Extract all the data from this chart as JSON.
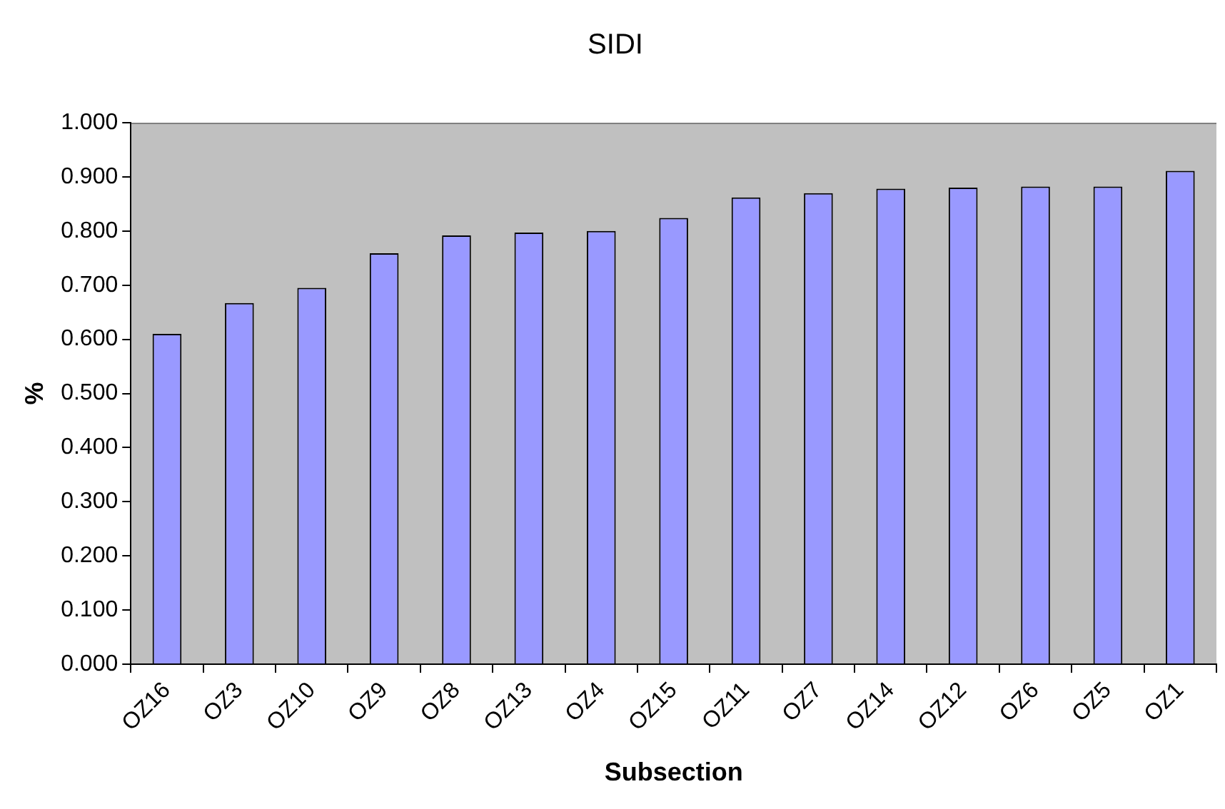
{
  "chart_data": {
    "type": "bar",
    "title": "SIDI",
    "xlabel": "Subsection",
    "ylabel": "%",
    "categories": [
      "OZ16",
      "OZ3",
      "OZ10",
      "OZ9",
      "OZ8",
      "OZ13",
      "OZ4",
      "OZ15",
      "OZ11",
      "OZ7",
      "OZ14",
      "OZ12",
      "OZ6",
      "OZ5",
      "OZ1"
    ],
    "values": [
      0.61,
      0.667,
      0.695,
      0.759,
      0.792,
      0.797,
      0.8,
      0.824,
      0.862,
      0.87,
      0.878,
      0.88,
      0.882,
      0.882,
      0.911
    ],
    "color": "#9999ff",
    "ylim": [
      0,
      1
    ],
    "yticks": [
      {
        "value": 0,
        "label": "0.000"
      },
      {
        "value": 0.1,
        "label": "0.100"
      },
      {
        "value": 0.2,
        "label": "0.200"
      },
      {
        "value": 0.3,
        "label": "0.300"
      },
      {
        "value": 0.4,
        "label": "0.400"
      },
      {
        "value": 0.5,
        "label": "0.500"
      },
      {
        "value": 0.6,
        "label": "0.600"
      },
      {
        "value": 0.7,
        "label": "0.700"
      },
      {
        "value": 0.8,
        "label": "0.800"
      },
      {
        "value": 0.9,
        "label": "0.900"
      },
      {
        "value": 1,
        "label": "1.000"
      }
    ],
    "grid": false,
    "legend": false
  }
}
